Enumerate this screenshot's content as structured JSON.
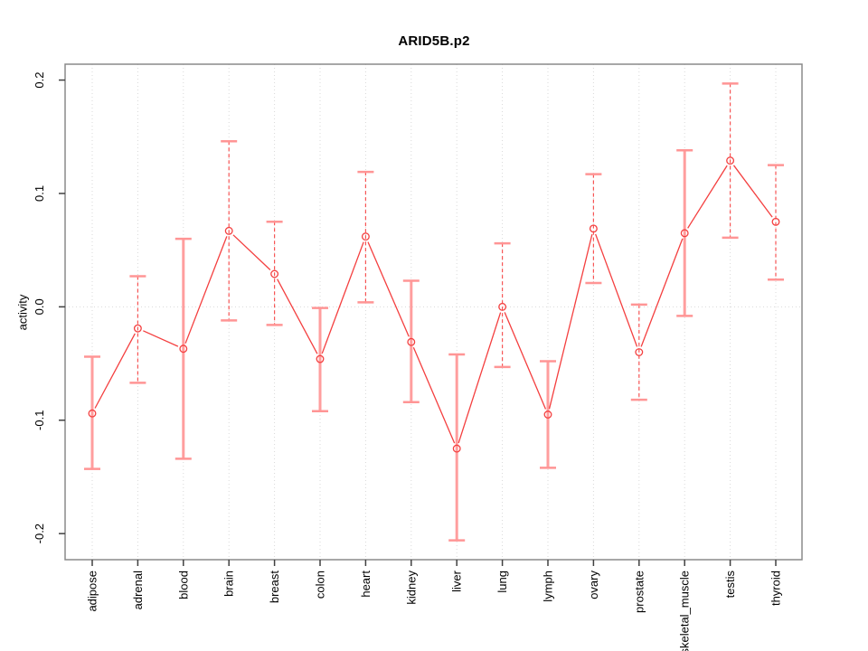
{
  "window": {
    "background": "#ffffff"
  },
  "chart_data": {
    "type": "line",
    "title": "ARID5B.p2",
    "xlabel": "",
    "ylabel": "activity",
    "legend_position": "none",
    "marker": "open-circle",
    "categories": [
      "adipose",
      "adrenal",
      "blood",
      "brain",
      "breast",
      "colon",
      "heart",
      "kidney",
      "liver",
      "lung",
      "lymph",
      "ovary",
      "prostate",
      "skeletal_muscle",
      "testis",
      "thyroid"
    ],
    "series": [
      {
        "name": "ARID5B.p2",
        "values": [
          -0.094,
          -0.019,
          -0.037,
          0.067,
          0.029,
          -0.046,
          0.062,
          -0.031,
          -0.125,
          0.0,
          -0.095,
          0.069,
          -0.04,
          0.065,
          0.129,
          0.075
        ],
        "ci_low": [
          -0.143,
          -0.067,
          -0.134,
          -0.012,
          -0.016,
          -0.092,
          0.004,
          -0.084,
          -0.206,
          -0.053,
          -0.142,
          0.021,
          -0.082,
          -0.008,
          0.061,
          0.024
        ],
        "ci_high": [
          -0.044,
          0.027,
          0.06,
          0.146,
          0.075,
          -0.001,
          0.119,
          0.023,
          -0.042,
          0.056,
          -0.048,
          0.117,
          0.002,
          0.138,
          0.197,
          0.125
        ],
        "bar_styles": [
          "solid",
          "dashed",
          "solid",
          "dashed",
          "dashed",
          "solid",
          "dashed",
          "solid",
          "solid",
          "dashed",
          "solid",
          "dashed",
          "dashed",
          "solid",
          "dashed",
          "dashed"
        ]
      }
    ],
    "ylim": [
      -0.223,
      0.214
    ],
    "yticks": [
      -0.2,
      -0.1,
      0,
      0.1,
      0.2
    ],
    "grid": {
      "vertical_per_category": true,
      "horizontal_at_zero": true
    },
    "colors": {
      "series": "#f43f3f",
      "bar_solid": "#ff9e9e",
      "bar_dashed": "#f75555",
      "cap": "#ff9595",
      "grid": "#d9d9d9",
      "frame": "#8a8a8a",
      "tick": "#404040",
      "text": "#000000",
      "background": "#ffffff"
    }
  }
}
